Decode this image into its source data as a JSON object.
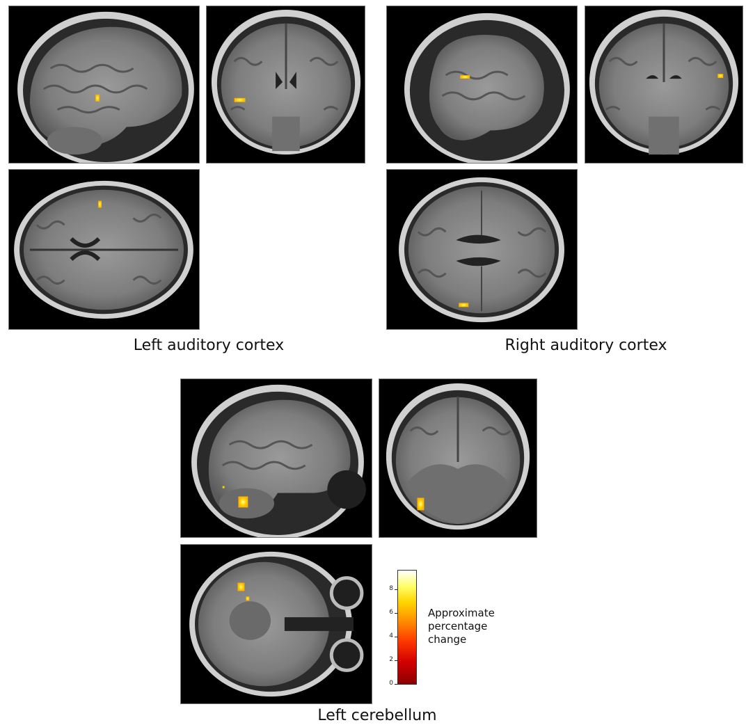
{
  "captions": {
    "left_auditory": "Left auditory cortex",
    "right_auditory": "Right auditory cortex",
    "left_cerebellum": "Left cerebellum"
  },
  "colorbar": {
    "ticks": [
      "0",
      "2",
      "4",
      "6",
      "8"
    ],
    "label_line1": "Approximate",
    "label_line2": "percentage",
    "label_line3": "change",
    "colors": [
      "#8b0000",
      "#d40000",
      "#ff3a00",
      "#ff8c00",
      "#ffd400",
      "#ffff66",
      "#ffffff"
    ]
  }
}
